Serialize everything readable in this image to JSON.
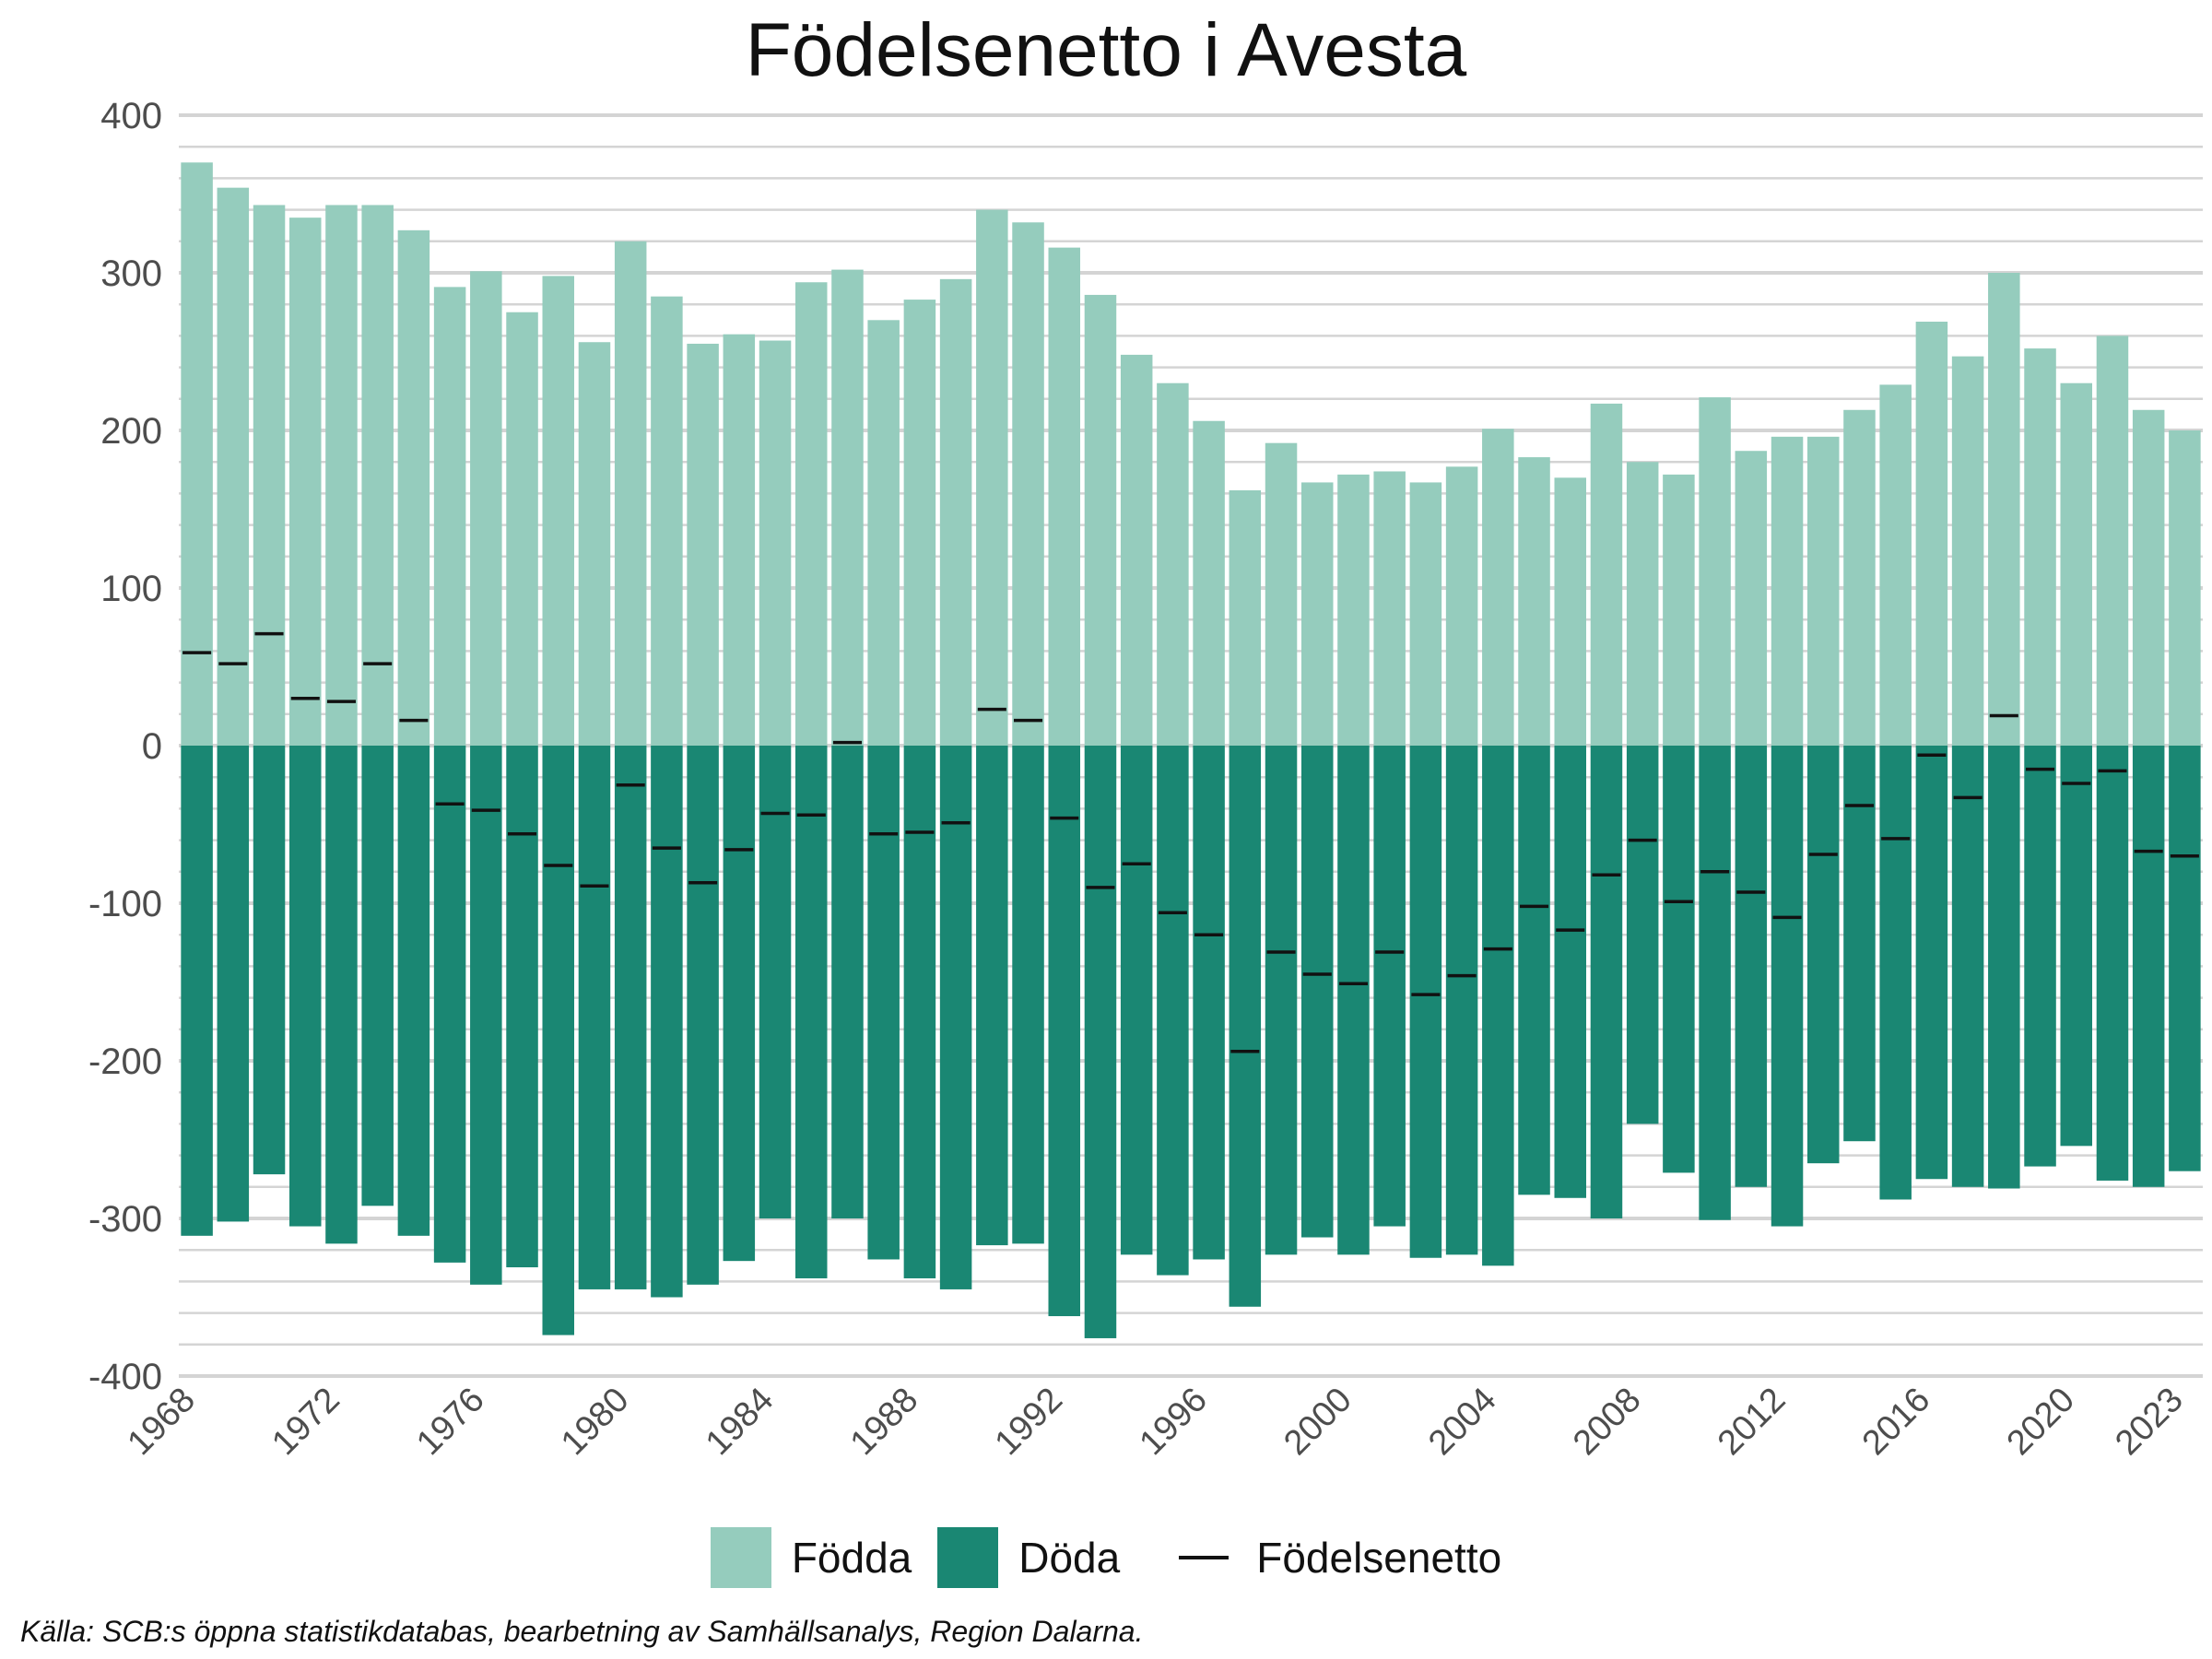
{
  "chart_data": {
    "type": "bar",
    "title": "Födelsenetto i Avesta",
    "xlabel": "",
    "ylabel": "",
    "ylim": [
      -400,
      400
    ],
    "yticks": [
      400,
      300,
      200,
      100,
      0,
      -100,
      -200,
      -300,
      -400
    ],
    "xticks": [
      1968,
      1972,
      1976,
      1980,
      1984,
      1988,
      1992,
      1996,
      2000,
      2004,
      2008,
      2012,
      2016,
      2020,
      2023
    ],
    "x": [
      1968,
      1969,
      1970,
      1971,
      1972,
      1973,
      1974,
      1975,
      1976,
      1977,
      1978,
      1979,
      1980,
      1981,
      1982,
      1983,
      1984,
      1985,
      1986,
      1987,
      1988,
      1989,
      1990,
      1991,
      1992,
      1993,
      1994,
      1995,
      1996,
      1997,
      1998,
      1999,
      2000,
      2001,
      2002,
      2003,
      2004,
      2005,
      2006,
      2007,
      2008,
      2009,
      2010,
      2011,
      2012,
      2013,
      2014,
      2015,
      2016,
      2017,
      2018,
      2019,
      2020,
      2021,
      2022,
      2023
    ],
    "series": [
      {
        "name": "Födda",
        "kind": "bar",
        "color": "#95ccbd",
        "values": [
          370,
          354,
          343,
          335,
          343,
          343,
          327,
          291,
          301,
          275,
          298,
          256,
          320,
          285,
          255,
          261,
          257,
          294,
          302,
          270,
          283,
          296,
          340,
          332,
          316,
          286,
          248,
          230,
          206,
          162,
          192,
          167,
          172,
          174,
          167,
          177,
          201,
          183,
          170,
          217,
          180,
          172,
          221,
          187,
          196,
          196,
          213,
          229,
          269,
          247,
          300,
          252,
          230,
          260,
          213,
          200
        ]
      },
      {
        "name": "Döda",
        "kind": "bar",
        "color": "#1a8773",
        "values": [
          -311,
          -302,
          -272,
          -305,
          -316,
          -292,
          -311,
          -328,
          -342,
          -331,
          -374,
          -345,
          -345,
          -350,
          -342,
          -327,
          -300,
          -338,
          -300,
          -326,
          -338,
          -345,
          -317,
          -316,
          -362,
          -376,
          -323,
          -336,
          -326,
          -356,
          -323,
          -312,
          -323,
          -305,
          -325,
          -323,
          -330,
          -285,
          -287,
          -300,
          -240,
          -271,
          -301,
          -280,
          -305,
          -265,
          -251,
          -288,
          -275,
          -280,
          -281,
          -267,
          -254,
          -276,
          -280,
          -270
        ]
      },
      {
        "name": "Födelsenetto",
        "kind": "marker",
        "color": "#111111",
        "values": [
          59,
          52,
          71,
          30,
          28,
          52,
          16,
          -37,
          -41,
          -56,
          -76,
          -89,
          -25,
          -65,
          -87,
          -66,
          -43,
          -44,
          2,
          -56,
          -55,
          -49,
          23,
          16,
          -46,
          -90,
          -75,
          -106,
          -120,
          -194,
          -131,
          -145,
          -151,
          -131,
          -158,
          -146,
          -129,
          -102,
          -117,
          -82,
          -60,
          -99,
          -80,
          -93,
          -109,
          -69,
          -38,
          -59,
          -6,
          -33,
          19,
          -15,
          -24,
          -16,
          -67,
          -70
        ]
      }
    ],
    "legend": [
      "Födda",
      "Döda",
      "Födelsenetto"
    ],
    "legend_position": "bottom",
    "source": "Källa: SCB:s öppna statistikdatabas, bearbetning av Samhällsanalys, Region Dalarna."
  }
}
